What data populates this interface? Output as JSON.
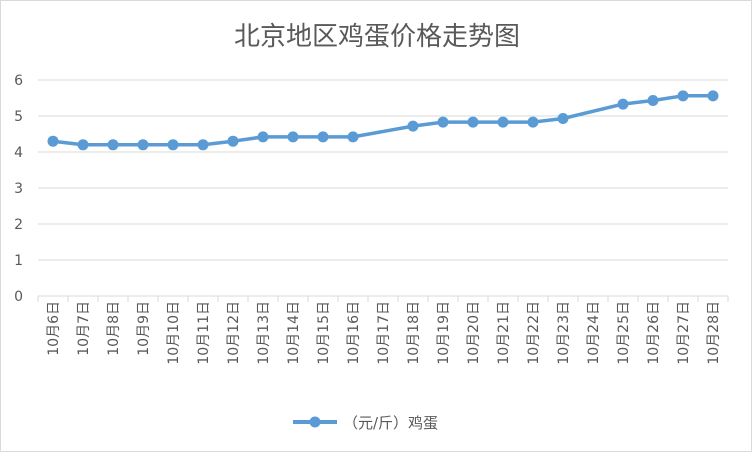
{
  "chart_data": {
    "type": "line",
    "title": "北京地区鸡蛋价格走势图",
    "categories": [
      "10月6日",
      "10月7日",
      "10月8日",
      "10月9日",
      "10月10日",
      "10月11日",
      "10月12日",
      "10月13日",
      "10月14日",
      "10月15日",
      "10月16日",
      "10月17日",
      "10月18日",
      "10月19日",
      "10月20日",
      "10月21日",
      "10月22日",
      "10月23日",
      "10月24日",
      "10月25日",
      "10月26日",
      "10月27日",
      "10月28日"
    ],
    "series": [
      {
        "name": "（元/斤）鸡蛋",
        "color": "#5b9bd5",
        "values": [
          4.3,
          4.2,
          4.2,
          4.2,
          4.2,
          4.2,
          4.3,
          4.42,
          4.42,
          4.42,
          4.42,
          null,
          4.72,
          4.83,
          4.83,
          4.83,
          4.83,
          4.93,
          null,
          5.33,
          5.43,
          5.56,
          5.56
        ]
      }
    ],
    "ylim": [
      0,
      6
    ],
    "yticks": [
      "0",
      "1",
      "2",
      "3",
      "4",
      "5",
      "6"
    ],
    "grid": true,
    "legend": "bottom",
    "xlabel": "",
    "ylabel": ""
  }
}
